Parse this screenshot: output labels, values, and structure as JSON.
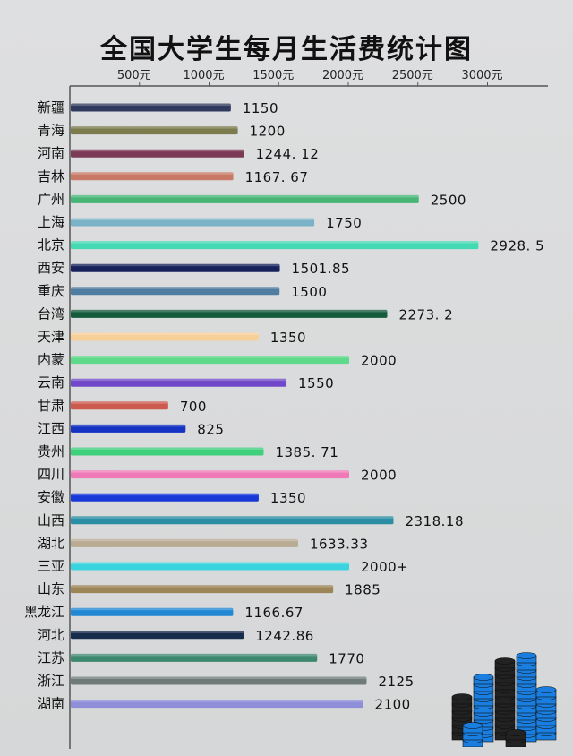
{
  "chart_data": {
    "type": "bar",
    "orientation": "horizontal",
    "title": "全国大学生每月生活费统计图",
    "xlabel": "",
    "ylabel": "",
    "x_ticks": [
      {
        "value": 500,
        "label": "500元"
      },
      {
        "value": 1000,
        "label": "1000元"
      },
      {
        "value": 1500,
        "label": "1500元"
      },
      {
        "value": 2000,
        "label": "2000元"
      },
      {
        "value": 2500,
        "label": "2500元"
      },
      {
        "value": 3000,
        "label": "3000元"
      }
    ],
    "xlim": [
      0,
      3000
    ],
    "grid": false,
    "categories": [
      "新疆",
      "青海",
      "河南",
      "吉林",
      "广州",
      "上海",
      "北京",
      "西安",
      "重庆",
      "台湾",
      "天津",
      "内蒙",
      "云南",
      "甘肃",
      "江西",
      "贵州",
      "四川",
      "安徽",
      "山西",
      "湖北",
      "三亚",
      "山东",
      "黑龙江",
      "河北",
      "江苏",
      "浙江",
      "湖南"
    ],
    "values": [
      1150,
      1200,
      1244.12,
      1167.67,
      2500,
      1750,
      2928.5,
      1501.85,
      1500,
      2273.2,
      1350,
      2000,
      1550,
      700,
      825,
      1385.71,
      2000,
      1350,
      2318.18,
      1633.33,
      2000,
      1885,
      1166.67,
      1242.86,
      1770,
      2125,
      2100
    ],
    "value_labels": [
      "1150",
      "1200",
      "1244. 12",
      "1167. 67",
      "2500",
      "1750",
      "2928. 5",
      "1501.85",
      "1500",
      "2273. 2",
      "1350",
      "2000",
      "1550",
      "700",
      "825",
      "1385. 71",
      "2000",
      "1350",
      "2318.18",
      "1633.33",
      "2000+",
      "1885",
      "1166.67",
      "1242.86",
      "1770",
      "2125",
      "2100"
    ],
    "colors": [
      "#2f3a5e",
      "#7c7c4e",
      "#7b3a55",
      "#c97a66",
      "#48b577",
      "#7ab3c7",
      "#44d9b2",
      "#17225c",
      "#4f7da1",
      "#145c3c",
      "#f7cf99",
      "#5fd98a",
      "#7048c9",
      "#cc5a4f",
      "#1532c2",
      "#3ed07b",
      "#f07ab8",
      "#1838d8",
      "#2c8ea5",
      "#b8ab92",
      "#3ad4de",
      "#9c8557",
      "#2288d4",
      "#162c4c",
      "#3f8870",
      "#6f7b79",
      "#8f8ed9"
    ]
  },
  "decoration": {
    "coins_icon": "stacked-coins-illustration",
    "coin_colors": [
      "#1a7ee0",
      "#222222"
    ]
  }
}
